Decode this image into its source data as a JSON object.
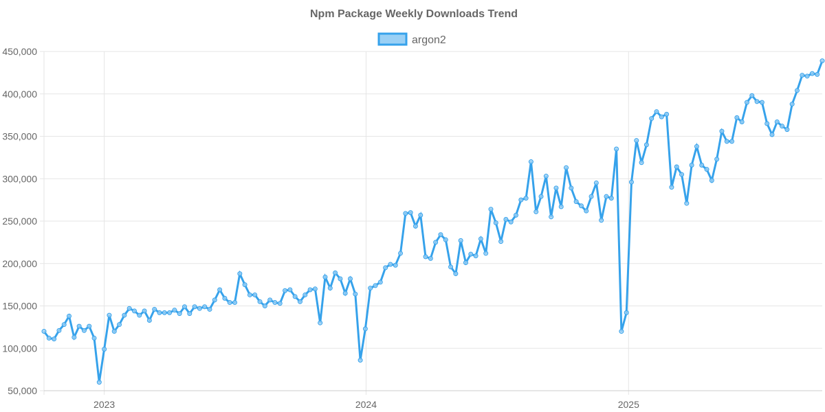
{
  "chart_data": {
    "type": "line",
    "title": "Npm Package Weekly Downloads Trend",
    "xlabel": "",
    "ylabel": "",
    "ylim": [
      50000,
      450000
    ],
    "y_ticks": [
      "50,000",
      "100,000",
      "150,000",
      "200,000",
      "250,000",
      "300,000",
      "350,000",
      "400,000",
      "450,000"
    ],
    "y_tick_values": [
      50000,
      100000,
      150000,
      200000,
      250000,
      300000,
      350000,
      400000,
      450000
    ],
    "x_ticks": [
      {
        "label": "2023",
        "date": "2023-01-01"
      },
      {
        "label": "2024",
        "date": "2024-01-01"
      },
      {
        "label": "2025",
        "date": "2025-01-01"
      }
    ],
    "x_start": "2022-10-09",
    "x_interval_days": 7,
    "grid": true,
    "legend_position": "top",
    "series": [
      {
        "name": "argon2",
        "color": "#36A2EB",
        "fill": "#9AD0F5",
        "values": [
          120000,
          112000,
          111000,
          121000,
          128000,
          138000,
          113000,
          126000,
          121000,
          126000,
          112000,
          60000,
          99000,
          139000,
          120000,
          128000,
          139000,
          147000,
          144000,
          139000,
          144000,
          133000,
          146000,
          142000,
          142000,
          142000,
          145000,
          141000,
          149000,
          141000,
          149000,
          147000,
          149000,
          146000,
          157000,
          169000,
          159000,
          154000,
          154000,
          188000,
          175000,
          163000,
          163000,
          155000,
          150000,
          157000,
          154000,
          153000,
          168000,
          169000,
          161000,
          155000,
          163000,
          169000,
          170000,
          130000,
          184000,
          171000,
          189000,
          182000,
          165000,
          182000,
          164000,
          86000,
          123000,
          171000,
          174000,
          178000,
          195000,
          199000,
          198000,
          212000,
          259000,
          260000,
          244000,
          257000,
          208000,
          206000,
          225000,
          234000,
          228000,
          196000,
          188000,
          227000,
          201000,
          211000,
          209000,
          229000,
          212000,
          264000,
          248000,
          226000,
          252000,
          249000,
          257000,
          275000,
          277000,
          320000,
          261000,
          279000,
          303000,
          255000,
          289000,
          267000,
          313000,
          289000,
          273000,
          268000,
          262000,
          279000,
          295000,
          251000,
          279000,
          277000,
          335000,
          120000,
          142000,
          296000,
          345000,
          319000,
          340000,
          371000,
          379000,
          373000,
          376000,
          290000,
          314000,
          305000,
          271000,
          316000,
          338000,
          316000,
          311000,
          298000,
          323000,
          356000,
          344000,
          344000,
          372000,
          367000,
          390000,
          398000,
          391000,
          390000,
          365000,
          352000,
          367000,
          362000,
          358000,
          388000,
          404000,
          422000,
          421000,
          424000,
          423000,
          439000
        ]
      }
    ]
  }
}
